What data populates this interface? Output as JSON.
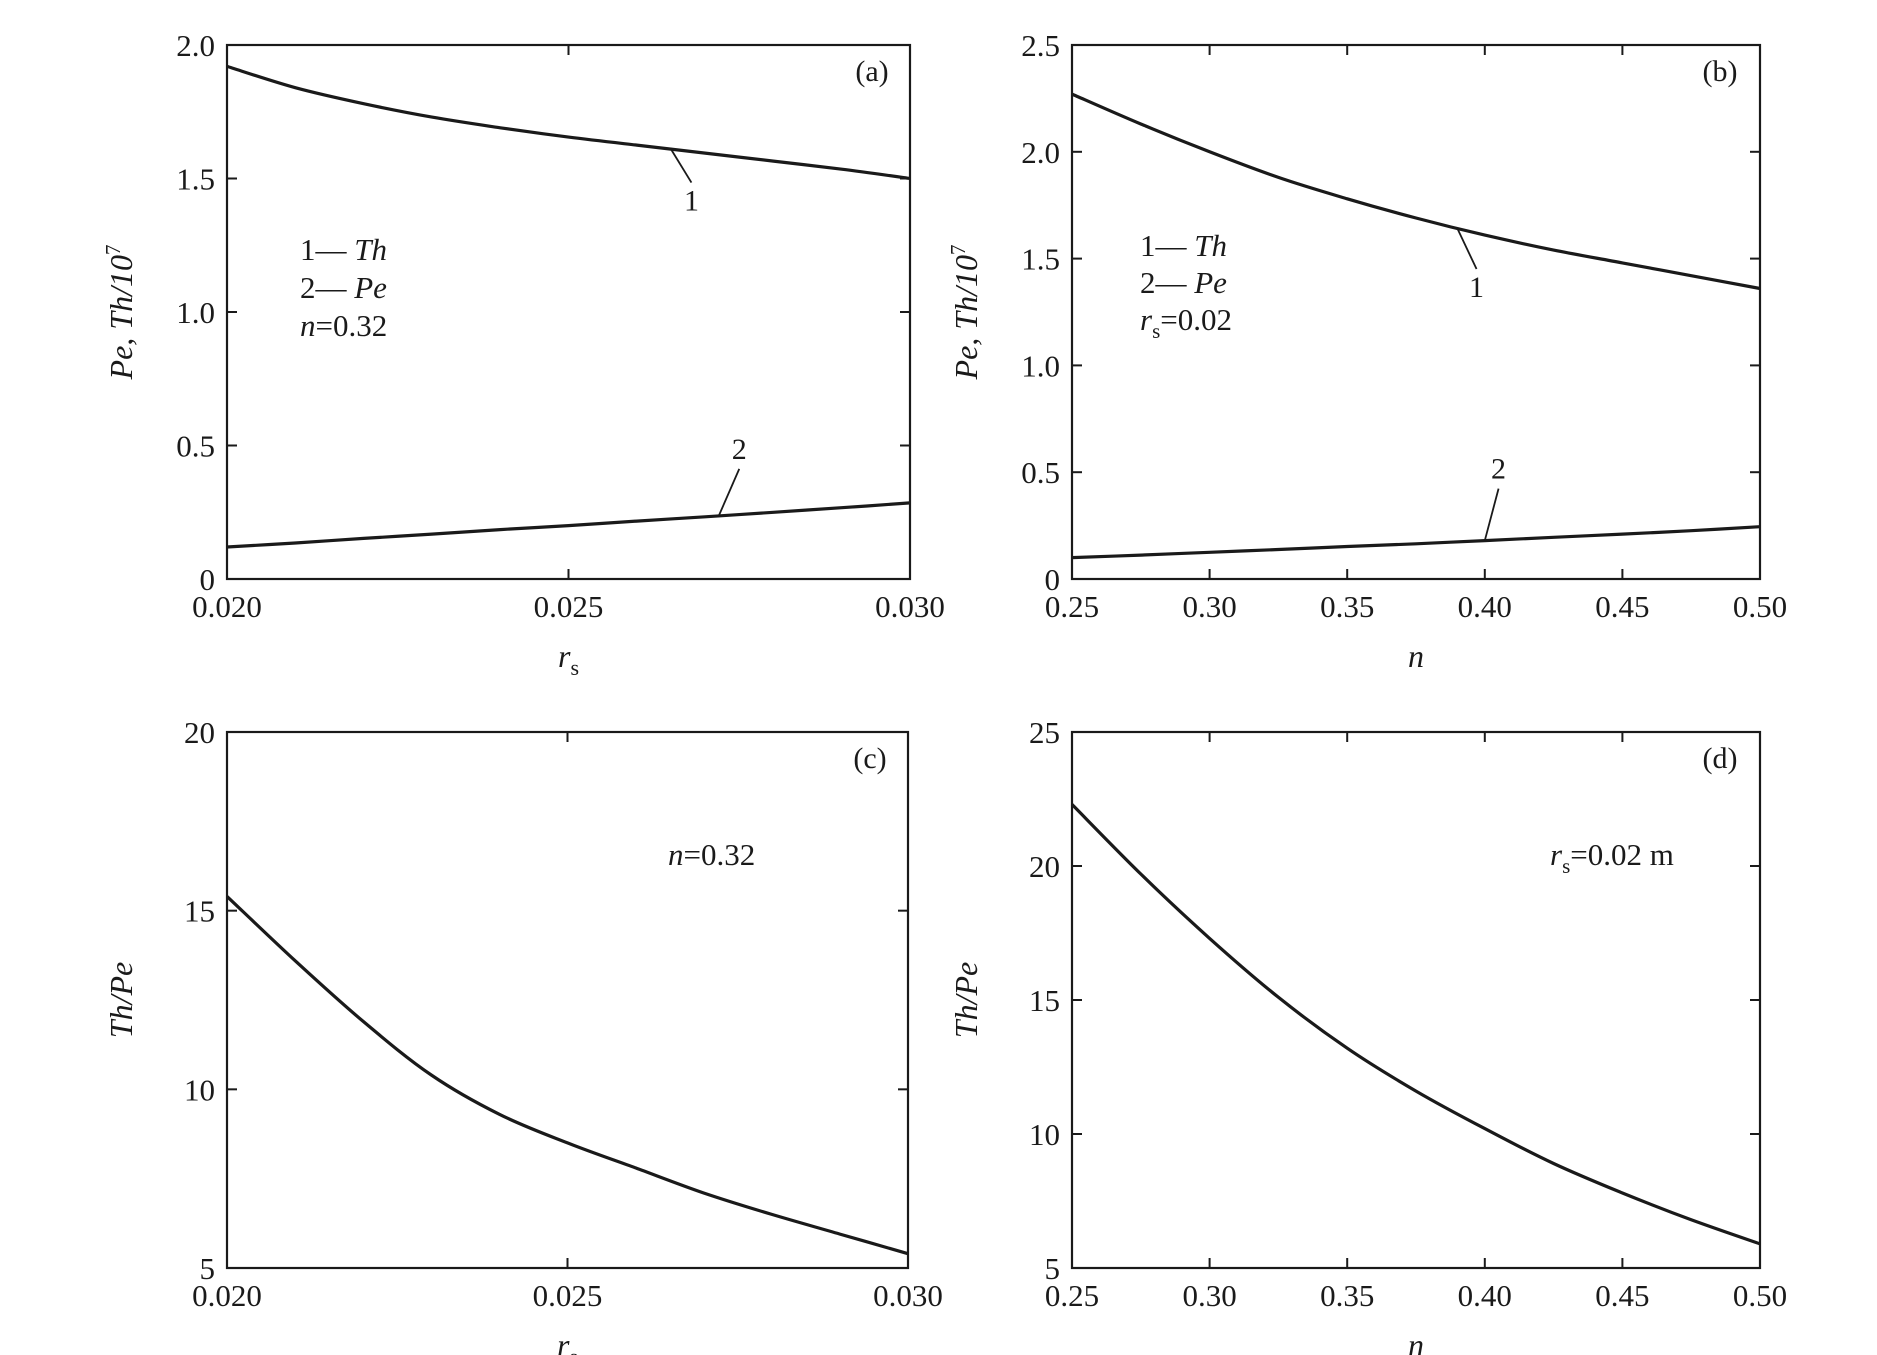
{
  "chart_data": [
    {
      "type": "line",
      "panel_label": "(a)",
      "xlabel": "r",
      "xlabel_sub": "s",
      "ylabel": "Pe, Th/10",
      "ylabel_sup": "7",
      "xlim": [
        0.02,
        0.03
      ],
      "ylim": [
        0,
        2.0
      ],
      "x_ticks": [
        "0.020",
        "0.025",
        "0.030"
      ],
      "x_tick_values": [
        0.02,
        0.025,
        0.03
      ],
      "y_ticks": [
        "0",
        "0.5",
        "1.0",
        "1.5",
        "2.0"
      ],
      "y_tick_values": [
        0,
        0.5,
        1.0,
        1.5,
        2.0
      ],
      "grid": false,
      "legend": {
        "placement": "upper-left",
        "lines": [
          {
            "text": "1—",
            "text_italic": "Th"
          },
          {
            "text": "2—",
            "text_italic": "Pe"
          },
          {
            "text_italic": "n",
            "text": "=0.32"
          }
        ]
      },
      "x": [
        0.02,
        0.021,
        0.022,
        0.023,
        0.024,
        0.025,
        0.026,
        0.027,
        0.028,
        0.029,
        0.03
      ],
      "series": [
        {
          "name": "1",
          "values": [
            1.92,
            1.84,
            1.78,
            1.73,
            1.69,
            1.655,
            1.625,
            1.595,
            1.565,
            1.535,
            1.5
          ],
          "label_at": 0.0265,
          "label_dx": 0.0003,
          "label_y": 1.38
        },
        {
          "name": "2",
          "values": [
            0.12,
            0.135,
            0.152,
            0.168,
            0.185,
            0.2,
            0.217,
            0.233,
            0.25,
            0.267,
            0.285
          ],
          "label_at": 0.0272,
          "label_dx": 0.0003,
          "label_y": 0.45
        }
      ]
    },
    {
      "type": "line",
      "panel_label": "(b)",
      "xlabel": "n",
      "ylabel": "Pe, Th/10",
      "ylabel_sup": "7",
      "xlim": [
        0.25,
        0.5
      ],
      "ylim": [
        0,
        2.5
      ],
      "x_ticks": [
        "0.25",
        "0.30",
        "0.35",
        "0.40",
        "0.45",
        "0.50"
      ],
      "x_tick_values": [
        0.25,
        0.3,
        0.35,
        0.4,
        0.45,
        0.5
      ],
      "y_ticks": [
        "0",
        "0.5",
        "1.0",
        "1.5",
        "2.0",
        "2.5"
      ],
      "y_tick_values": [
        0,
        0.5,
        1.0,
        1.5,
        2.0,
        2.5
      ],
      "grid": false,
      "legend": {
        "placement": "upper-left",
        "lines": [
          {
            "text": "1—",
            "text_italic": "Th"
          },
          {
            "text": "2—",
            "text_italic": "Pe"
          },
          {
            "text_italic": "r",
            "text_sub": "s",
            "text": "=0.02"
          }
        ]
      },
      "x": [
        0.25,
        0.275,
        0.3,
        0.325,
        0.35,
        0.375,
        0.4,
        0.425,
        0.45,
        0.475,
        0.5
      ],
      "series": [
        {
          "name": "1",
          "values": [
            2.27,
            2.13,
            2.0,
            1.88,
            1.78,
            1.69,
            1.61,
            1.54,
            1.48,
            1.42,
            1.36
          ],
          "label_at": 0.39,
          "label_dx": 0.007,
          "label_y": 1.32
        },
        {
          "name": "2",
          "values": [
            0.1,
            0.112,
            0.125,
            0.138,
            0.152,
            0.165,
            0.18,
            0.195,
            0.21,
            0.226,
            0.245
          ],
          "label_at": 0.4,
          "label_dx": 0.005,
          "label_y": 0.47
        }
      ]
    },
    {
      "type": "line",
      "panel_label": "(c)",
      "xlabel": "r",
      "xlabel_sub": "s",
      "ylabel": "Th/Pe",
      "xlim": [
        0.02,
        0.03
      ],
      "ylim": [
        5,
        20
      ],
      "x_ticks": [
        "0.020",
        "0.025",
        "0.030"
      ],
      "x_tick_values": [
        0.02,
        0.025,
        0.03
      ],
      "y_ticks": [
        "5",
        "10",
        "15",
        "20"
      ],
      "y_tick_values": [
        5,
        10,
        15,
        20
      ],
      "grid": false,
      "annotation": {
        "text_italic": "n",
        "text": "=0.32"
      },
      "x": [
        0.02,
        0.021,
        0.022,
        0.023,
        0.024,
        0.025,
        0.026,
        0.027,
        0.028,
        0.029,
        0.03
      ],
      "series": [
        {
          "values": [
            15.4,
            13.6,
            11.9,
            10.4,
            9.3,
            8.5,
            7.8,
            7.1,
            6.5,
            5.95,
            5.4
          ]
        }
      ]
    },
    {
      "type": "line",
      "panel_label": "(d)",
      "xlabel": "n",
      "ylabel": "Th/Pe",
      "xlim": [
        0.25,
        0.5
      ],
      "ylim": [
        5,
        25
      ],
      "x_ticks": [
        "0.25",
        "0.30",
        "0.35",
        "0.40",
        "0.45",
        "0.50"
      ],
      "x_tick_values": [
        0.25,
        0.3,
        0.35,
        0.4,
        0.45,
        0.5
      ],
      "y_ticks": [
        "5",
        "10",
        "15",
        "20",
        "25"
      ],
      "y_tick_values": [
        5,
        10,
        15,
        20,
        25
      ],
      "grid": false,
      "annotation": {
        "text_italic": "r",
        "text_sub": "s",
        "text": "=0.02 m"
      },
      "x": [
        0.25,
        0.275,
        0.3,
        0.325,
        0.35,
        0.375,
        0.4,
        0.425,
        0.45,
        0.475,
        0.5
      ],
      "series": [
        {
          "values": [
            22.3,
            19.7,
            17.3,
            15.1,
            13.2,
            11.6,
            10.2,
            8.9,
            7.8,
            6.8,
            5.9
          ]
        }
      ]
    }
  ]
}
